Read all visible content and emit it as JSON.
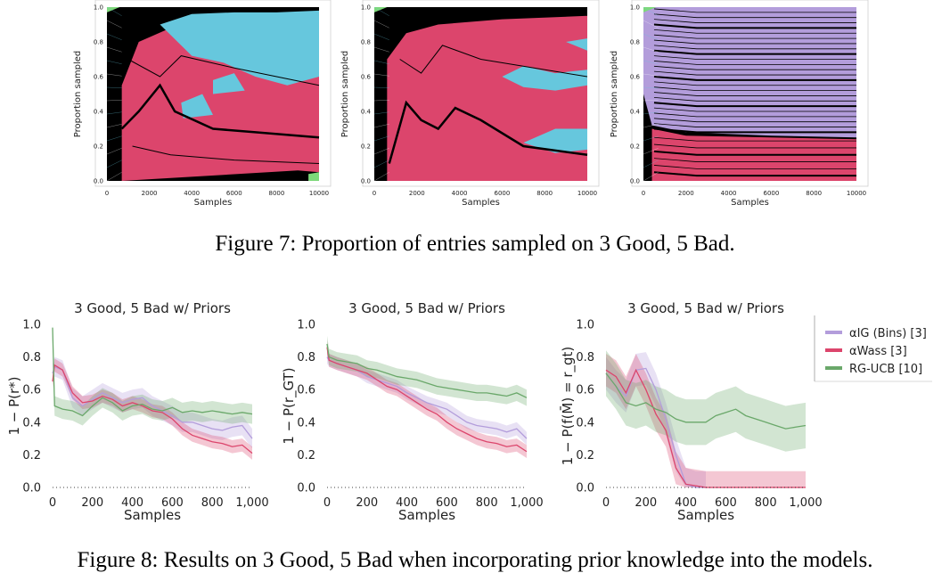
{
  "figure7": {
    "caption": "Figure 7: Proportion of entries sampled on 3 Good, 5 Bad.",
    "colors": {
      "bad": "#dc456c",
      "good": "#66c7dd",
      "ig": "#b39ddb",
      "green": "#7dd87a",
      "line": "#000000"
    },
    "chart_data": [
      {
        "type": "area",
        "ylabel": "Proportion sampled",
        "xlabel": "Samples",
        "x_ticks": [
          "0",
          "2000",
          "4000",
          "6000",
          "8000",
          "10000"
        ],
        "y_ticks": [
          "0.0",
          "0.2",
          "0.4",
          "0.6",
          "0.8",
          "1.0"
        ],
        "xlim": [
          0,
          10000
        ],
        "ylim": [
          0,
          1
        ]
      },
      {
        "type": "area",
        "ylabel": "Proportion sampled",
        "xlabel": "Samples",
        "x_ticks": [
          "0",
          "2000",
          "4000",
          "6000",
          "8000",
          "10000"
        ],
        "y_ticks": [
          "0.0",
          "0.2",
          "0.4",
          "0.6",
          "0.8",
          "1.0"
        ],
        "xlim": [
          0,
          10000
        ],
        "ylim": [
          0,
          1
        ]
      },
      {
        "type": "area",
        "ylabel": "Proportion sampled",
        "xlabel": "Samples",
        "x_ticks": [
          "0",
          "2000",
          "4000",
          "6000",
          "8000",
          "10000"
        ],
        "y_ticks": [
          "0.0",
          "0.2",
          "0.4",
          "0.6",
          "0.8",
          "1.0"
        ],
        "xlim": [
          0,
          10000
        ],
        "ylim": [
          0,
          1
        ]
      }
    ]
  },
  "figure8": {
    "caption": "Figure 8: Results on 3 Good, 5 Bad when incorporating prior knowledge into the models.",
    "legend": [
      {
        "label": "αIG (Bins) [3]",
        "color": "#b39ddb"
      },
      {
        "label": "αWass [3]",
        "color": "#dc456c"
      },
      {
        "label": "RG-UCB [10]",
        "color": "#6aa86a"
      }
    ],
    "chart_data": [
      {
        "type": "line",
        "title": "3 Good, 5 Bad w/ Priors",
        "xlabel": "Samples",
        "ylabel": "1 − P(r*)",
        "x_ticks": [
          "0",
          "200",
          "400",
          "600",
          "800",
          "1,000"
        ],
        "y_ticks": [
          "0.0",
          "0.2",
          "0.4",
          "0.6",
          "0.8",
          "1.0"
        ],
        "xlim": [
          0,
          1000
        ],
        "ylim": [
          0,
          1
        ],
        "series": [
          {
            "name": "αIG (Bins) [3]",
            "x": [
              0,
              10,
              50,
              100,
              150,
              200,
              250,
              300,
              350,
              400,
              450,
              500,
              550,
              600,
              650,
              700,
              750,
              800,
              850,
              900,
              950,
              1000
            ],
            "y": [
              0.7,
              0.74,
              0.72,
              0.55,
              0.5,
              0.54,
              0.58,
              0.55,
              0.52,
              0.54,
              0.55,
              0.5,
              0.47,
              0.44,
              0.4,
              0.4,
              0.38,
              0.36,
              0.35,
              0.37,
              0.38,
              0.3
            ]
          },
          {
            "name": "αWass [3]",
            "x": [
              0,
              10,
              50,
              100,
              150,
              200,
              250,
              300,
              350,
              400,
              450,
              500,
              550,
              600,
              650,
              700,
              750,
              800,
              850,
              900,
              950,
              1000
            ],
            "y": [
              0.65,
              0.75,
              0.72,
              0.58,
              0.52,
              0.53,
              0.56,
              0.54,
              0.5,
              0.52,
              0.5,
              0.47,
              0.46,
              0.42,
              0.36,
              0.32,
              0.3,
              0.28,
              0.27,
              0.25,
              0.26,
              0.21
            ]
          },
          {
            "name": "RG-UCB [10]",
            "x": [
              0,
              10,
              50,
              100,
              150,
              200,
              250,
              300,
              350,
              400,
              450,
              500,
              550,
              600,
              650,
              700,
              750,
              800,
              850,
              900,
              950,
              1000
            ],
            "y": [
              0.98,
              0.5,
              0.48,
              0.47,
              0.44,
              0.5,
              0.55,
              0.52,
              0.47,
              0.5,
              0.51,
              0.48,
              0.47,
              0.49,
              0.46,
              0.47,
              0.46,
              0.47,
              0.46,
              0.45,
              0.46,
              0.45
            ]
          }
        ]
      },
      {
        "type": "line",
        "title": "3 Good, 5 Bad w/ Priors",
        "xlabel": "Samples",
        "ylabel": "1 − P(r_GT)",
        "x_ticks": [
          "0",
          "200",
          "400",
          "600",
          "800",
          "1,000"
        ],
        "y_ticks": [
          "0.0",
          "0.2",
          "0.4",
          "0.6",
          "0.8",
          "1.0"
        ],
        "xlim": [
          0,
          1000
        ],
        "ylim": [
          0,
          1
        ],
        "series": [
          {
            "name": "αIG (Bins) [3]",
            "x": [
              0,
              10,
              50,
              100,
              150,
              200,
              250,
              300,
              350,
              400,
              450,
              500,
              550,
              600,
              650,
              700,
              750,
              800,
              850,
              900,
              950,
              1000
            ],
            "y": [
              0.8,
              0.78,
              0.76,
              0.74,
              0.72,
              0.68,
              0.66,
              0.64,
              0.62,
              0.58,
              0.55,
              0.52,
              0.5,
              0.48,
              0.44,
              0.4,
              0.38,
              0.37,
              0.36,
              0.34,
              0.36,
              0.3
            ]
          },
          {
            "name": "αWass [3]",
            "x": [
              0,
              10,
              50,
              100,
              150,
              200,
              250,
              300,
              350,
              400,
              450,
              500,
              550,
              600,
              650,
              700,
              750,
              800,
              850,
              900,
              950,
              1000
            ],
            "y": [
              0.86,
              0.78,
              0.76,
              0.74,
              0.72,
              0.7,
              0.66,
              0.62,
              0.6,
              0.56,
              0.52,
              0.48,
              0.45,
              0.4,
              0.36,
              0.33,
              0.3,
              0.28,
              0.27,
              0.25,
              0.26,
              0.22
            ]
          },
          {
            "name": "RG-UCB [10]",
            "x": [
              0,
              10,
              50,
              100,
              150,
              200,
              250,
              300,
              350,
              400,
              450,
              500,
              550,
              600,
              650,
              700,
              750,
              800,
              850,
              900,
              950,
              1000
            ],
            "y": [
              0.88,
              0.8,
              0.78,
              0.77,
              0.76,
              0.73,
              0.72,
              0.7,
              0.68,
              0.67,
              0.66,
              0.64,
              0.62,
              0.61,
              0.6,
              0.59,
              0.58,
              0.58,
              0.57,
              0.56,
              0.58,
              0.55
            ]
          }
        ]
      },
      {
        "type": "line",
        "title": "3 Good, 5 Bad w/ Priors",
        "xlabel": "Samples",
        "ylabel": "1 − P(f(M̄) = r_gt)",
        "x_ticks": [
          "0",
          "200",
          "400",
          "600",
          "800",
          "1,000"
        ],
        "y_ticks": [
          "0.0",
          "0.2",
          "0.4",
          "0.6",
          "0.8",
          "1.0"
        ],
        "xlim": [
          0,
          1000
        ],
        "ylim": [
          0,
          1
        ],
        "series": [
          {
            "name": "αIG (Bins) [3]",
            "x": [
              0,
              50,
              100,
              150,
              200,
              250,
              300,
              350,
              400,
              450,
              500
            ],
            "y": [
              0.7,
              0.62,
              0.56,
              0.72,
              0.73,
              0.6,
              0.42,
              0.2,
              0.02,
              0.0,
              0.0
            ]
          },
          {
            "name": "αWass [3]",
            "x": [
              0,
              50,
              100,
              150,
              200,
              250,
              300,
              350,
              400,
              450,
              500,
              600,
              800,
              1000
            ],
            "y": [
              0.72,
              0.68,
              0.58,
              0.72,
              0.6,
              0.45,
              0.35,
              0.12,
              0.02,
              0.01,
              0.0,
              0.0,
              0.0,
              0.0
            ]
          },
          {
            "name": "RG-UCB [10]",
            "x": [
              0,
              50,
              100,
              150,
              200,
              250,
              300,
              350,
              400,
              450,
              500,
              550,
              600,
              650,
              700,
              750,
              800,
              850,
              900,
              950,
              1000
            ],
            "y": [
              0.7,
              0.62,
              0.52,
              0.5,
              0.52,
              0.48,
              0.46,
              0.42,
              0.4,
              0.4,
              0.4,
              0.44,
              0.46,
              0.48,
              0.44,
              0.42,
              0.4,
              0.38,
              0.36,
              0.37,
              0.38
            ]
          }
        ]
      }
    ]
  }
}
